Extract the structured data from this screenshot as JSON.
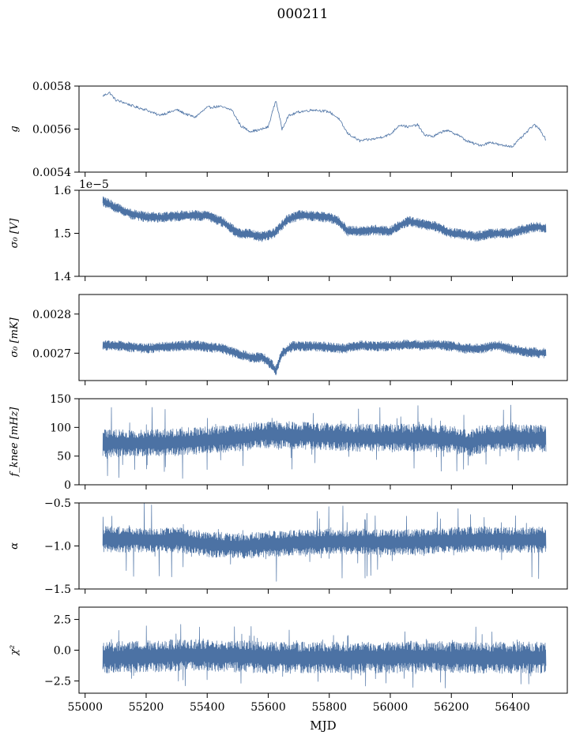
{
  "chart_data": {
    "type": "line",
    "title": "000211",
    "xlabel": "MJD",
    "xlim": [
      54980,
      56580
    ],
    "xticks": [
      "55000",
      "55200",
      "55400",
      "55600",
      "55800",
      "56000",
      "56200",
      "56400"
    ],
    "xtick_values": [
      55000,
      55200,
      55400,
      55600,
      55800,
      56000,
      56200,
      56400
    ],
    "color": "#4c72a4",
    "panels": [
      {
        "id": "g",
        "ylabel": "g",
        "ylim": [
          0.0054,
          0.0058
        ],
        "yticks": [
          "0.0054",
          "0.0056",
          "0.0058"
        ],
        "ytick_values": [
          0.0054,
          0.0056,
          0.0058
        ],
        "offset_text": "",
        "style": "thin",
        "keypoints": [
          [
            55058,
            0.005754
          ],
          [
            55080,
            0.00577
          ],
          [
            55100,
            0.005735
          ],
          [
            55130,
            0.005722
          ],
          [
            55160,
            0.005705
          ],
          [
            55200,
            0.00569
          ],
          [
            55240,
            0.005665
          ],
          [
            55270,
            0.005675
          ],
          [
            55300,
            0.00569
          ],
          [
            55330,
            0.00567
          ],
          [
            55360,
            0.005655
          ],
          [
            55400,
            0.0057
          ],
          [
            55440,
            0.005705
          ],
          [
            55480,
            0.00569
          ],
          [
            55510,
            0.005615
          ],
          [
            55540,
            0.00559
          ],
          [
            55570,
            0.005595
          ],
          [
            55600,
            0.00561
          ],
          [
            55625,
            0.005735
          ],
          [
            55645,
            0.0056
          ],
          [
            55665,
            0.00566
          ],
          [
            55700,
            0.00568
          ],
          [
            55750,
            0.00569
          ],
          [
            55800,
            0.00568
          ],
          [
            55830,
            0.00565
          ],
          [
            55860,
            0.00558
          ],
          [
            55900,
            0.005545
          ],
          [
            55950,
            0.005555
          ],
          [
            56000,
            0.005575
          ],
          [
            56030,
            0.00562
          ],
          [
            56060,
            0.00561
          ],
          [
            56090,
            0.00562
          ],
          [
            56110,
            0.005575
          ],
          [
            56140,
            0.005565
          ],
          [
            56180,
            0.005595
          ],
          [
            56220,
            0.005575
          ],
          [
            56250,
            0.005545
          ],
          [
            56280,
            0.00553
          ],
          [
            56300,
            0.005525
          ],
          [
            56330,
            0.00554
          ],
          [
            56360,
            0.005525
          ],
          [
            56400,
            0.00552
          ],
          [
            56440,
            0.005575
          ],
          [
            56470,
            0.00562
          ],
          [
            56490,
            0.0056
          ],
          [
            56510,
            0.00555
          ]
        ],
        "noise": 6e-06,
        "spike": 0.0
      },
      {
        "id": "sigma0v",
        "ylabel": "σ₀ [V]",
        "ylim": [
          1.4,
          1.6
        ],
        "yticks": [
          "1.4",
          "1.5",
          "1.6"
        ],
        "ytick_values": [
          1.4,
          1.5,
          1.6
        ],
        "offset_text": "1e−5",
        "style": "band",
        "keypoints": [
          [
            55058,
            1.575
          ],
          [
            55100,
            1.56
          ],
          [
            55150,
            1.545
          ],
          [
            55200,
            1.538
          ],
          [
            55250,
            1.537
          ],
          [
            55300,
            1.54
          ],
          [
            55350,
            1.542
          ],
          [
            55400,
            1.54
          ],
          [
            55450,
            1.527
          ],
          [
            55500,
            1.5
          ],
          [
            55540,
            1.498
          ],
          [
            55580,
            1.492
          ],
          [
            55620,
            1.5
          ],
          [
            55660,
            1.53
          ],
          [
            55700,
            1.542
          ],
          [
            55750,
            1.54
          ],
          [
            55800,
            1.537
          ],
          [
            55830,
            1.528
          ],
          [
            55860,
            1.505
          ],
          [
            55900,
            1.505
          ],
          [
            55950,
            1.508
          ],
          [
            56000,
            1.505
          ],
          [
            56030,
            1.518
          ],
          [
            56060,
            1.528
          ],
          [
            56100,
            1.522
          ],
          [
            56150,
            1.515
          ],
          [
            56200,
            1.5
          ],
          [
            56240,
            1.498
          ],
          [
            56280,
            1.492
          ],
          [
            56320,
            1.498
          ],
          [
            56360,
            1.5
          ],
          [
            56400,
            1.5
          ],
          [
            56440,
            1.51
          ],
          [
            56480,
            1.515
          ],
          [
            56510,
            1.512
          ]
        ],
        "noise": 0.012,
        "spike": 0.0
      },
      {
        "id": "sigma0mk",
        "ylabel": "σ₀ [mK]",
        "ylim": [
          0.00263,
          0.00285
        ],
        "yticks": [
          "0.0027",
          "0.0028"
        ],
        "ytick_values": [
          0.0027,
          0.0028
        ],
        "offset_text": "",
        "style": "band",
        "keypoints": [
          [
            55058,
            0.00272
          ],
          [
            55100,
            0.00272
          ],
          [
            55150,
            0.002716
          ],
          [
            55200,
            0.002712
          ],
          [
            55250,
            0.002715
          ],
          [
            55300,
            0.002718
          ],
          [
            55350,
            0.00272
          ],
          [
            55400,
            0.002716
          ],
          [
            55450,
            0.002712
          ],
          [
            55500,
            0.002698
          ],
          [
            55550,
            0.002688
          ],
          [
            55580,
            0.00269
          ],
          [
            55610,
            0.002672
          ],
          [
            55625,
            0.002655
          ],
          [
            55645,
            0.0027
          ],
          [
            55680,
            0.002718
          ],
          [
            55750,
            0.002718
          ],
          [
            55800,
            0.002715
          ],
          [
            55850,
            0.002712
          ],
          [
            55900,
            0.00272
          ],
          [
            55950,
            0.002718
          ],
          [
            56000,
            0.002718
          ],
          [
            56050,
            0.002722
          ],
          [
            56100,
            0.00272
          ],
          [
            56150,
            0.002722
          ],
          [
            56200,
            0.002718
          ],
          [
            56250,
            0.002712
          ],
          [
            56300,
            0.002712
          ],
          [
            56350,
            0.00272
          ],
          [
            56400,
            0.00271
          ],
          [
            56450,
            0.002703
          ],
          [
            56510,
            0.0027
          ]
        ],
        "noise": 1.3e-05,
        "spike": 0.0
      },
      {
        "id": "fknee",
        "ylabel": "f_knee [mHz]",
        "ylim": [
          0,
          150
        ],
        "yticks": [
          "0",
          "50",
          "100",
          "150"
        ],
        "ytick_values": [
          0,
          50,
          100,
          150
        ],
        "offset_text": "",
        "style": "band",
        "keypoints": [
          [
            55058,
            72
          ],
          [
            55200,
            73
          ],
          [
            55300,
            74
          ],
          [
            55400,
            78
          ],
          [
            55500,
            82
          ],
          [
            55600,
            88
          ],
          [
            55700,
            86
          ],
          [
            55800,
            84
          ],
          [
            55900,
            82
          ],
          [
            56000,
            82
          ],
          [
            56100,
            82
          ],
          [
            56200,
            80
          ],
          [
            56260,
            72
          ],
          [
            56300,
            80
          ],
          [
            56400,
            82
          ],
          [
            56510,
            80
          ]
        ],
        "noise": 24,
        "spike": 40
      },
      {
        "id": "alpha",
        "ylabel": "α",
        "ylim": [
          -1.5,
          -0.5
        ],
        "yticks": [
          "−1.5",
          "−1.0",
          "−0.5"
        ],
        "ytick_values": [
          -1.5,
          -1.0,
          -0.5
        ],
        "offset_text": "",
        "style": "band",
        "keypoints": [
          [
            55058,
            -0.92
          ],
          [
            55200,
            -0.93
          ],
          [
            55300,
            -0.93
          ],
          [
            55400,
            -0.98
          ],
          [
            55500,
            -1.0
          ],
          [
            55600,
            -0.98
          ],
          [
            55700,
            -0.96
          ],
          [
            55800,
            -0.95
          ],
          [
            55900,
            -0.95
          ],
          [
            56000,
            -0.96
          ],
          [
            56100,
            -0.95
          ],
          [
            56200,
            -0.93
          ],
          [
            56300,
            -0.92
          ],
          [
            56400,
            -0.93
          ],
          [
            56510,
            -0.93
          ]
        ],
        "noise": 0.15,
        "spike": 0.3
      },
      {
        "id": "chi2",
        "ylabel": "χ²",
        "ylim": [
          -3.5,
          3.5
        ],
        "yticks": [
          "−2.5",
          "0.0",
          "2.5"
        ],
        "ytick_values": [
          -2.5,
          0.0,
          2.5
        ],
        "offset_text": "",
        "style": "band",
        "keypoints": [
          [
            55058,
            -0.6
          ],
          [
            55200,
            -0.5
          ],
          [
            55300,
            -0.4
          ],
          [
            55400,
            -0.4
          ],
          [
            55500,
            -0.5
          ],
          [
            55600,
            -0.6
          ],
          [
            55700,
            -0.6
          ],
          [
            55800,
            -0.6
          ],
          [
            55900,
            -0.6
          ],
          [
            56000,
            -0.6
          ],
          [
            56100,
            -0.5
          ],
          [
            56200,
            -0.6
          ],
          [
            56300,
            -0.6
          ],
          [
            56400,
            -0.6
          ],
          [
            56510,
            -0.6
          ]
        ],
        "noise": 1.3,
        "spike": 1.2
      }
    ]
  }
}
